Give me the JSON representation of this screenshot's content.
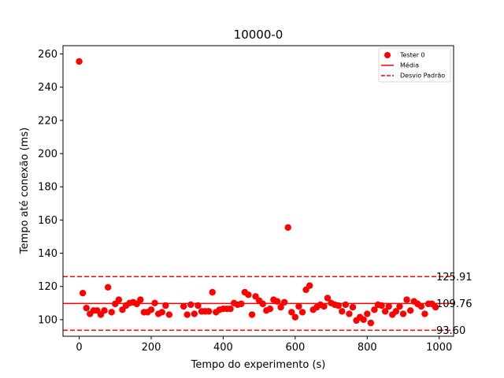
{
  "chart_data": {
    "type": "scatter",
    "title": "10000-0",
    "xlabel": "Tempo do experimento (s)",
    "ylabel": "Tempo até conexão (ms)",
    "xlim": [
      -45,
      1040
    ],
    "ylim": [
      90,
      265
    ],
    "xticks": [
      0,
      200,
      400,
      600,
      800,
      1000
    ],
    "yticks": [
      100,
      120,
      140,
      160,
      180,
      200,
      220,
      240,
      260
    ],
    "grid": false,
    "legend_position": "top-right",
    "legend": {
      "tester": "Tester 0",
      "mean": "Média",
      "std": "Desvio Padrão"
    },
    "colors": {
      "points": "#ff0000",
      "lines": "#ff0000"
    },
    "series": [
      {
        "name": "Tester 0",
        "x": [
          0,
          10,
          20,
          30,
          40,
          50,
          60,
          70,
          80,
          90,
          100,
          110,
          120,
          130,
          140,
          150,
          160,
          170,
          180,
          190,
          200,
          210,
          220,
          230,
          240,
          250,
          290,
          300,
          310,
          320,
          330,
          340,
          350,
          360,
          370,
          380,
          390,
          400,
          410,
          420,
          430,
          440,
          450,
          460,
          470,
          480,
          490,
          500,
          510,
          520,
          530,
          540,
          550,
          560,
          570,
          580,
          590,
          600,
          610,
          620,
          630,
          640,
          650,
          660,
          670,
          680,
          690,
          700,
          710,
          720,
          730,
          740,
          750,
          760,
          770,
          780,
          790,
          800,
          810,
          820,
          830,
          840,
          850,
          860,
          870,
          880,
          890,
          900,
          910,
          920,
          930,
          940,
          950,
          960,
          970,
          980,
          990
        ],
        "y": [
          255.5,
          116,
          107,
          103.5,
          105.5,
          105.5,
          103,
          105.5,
          119.5,
          104.5,
          109.5,
          112,
          106,
          108.5,
          110,
          110.5,
          109.5,
          112,
          104.5,
          104.5,
          106,
          110,
          103.5,
          104.5,
          108.5,
          103,
          108,
          103,
          109,
          103.5,
          108.5,
          105,
          105,
          105,
          116.5,
          104.5,
          106,
          106.5,
          106.5,
          106.5,
          110,
          109,
          109.5,
          116.5,
          115,
          103,
          114,
          111.5,
          109.5,
          105.5,
          106.5,
          112,
          111,
          107.5,
          110.5,
          155.5,
          104.5,
          101.5,
          108,
          104.5,
          118,
          120.5,
          106,
          107.5,
          109,
          108,
          113,
          110,
          109,
          108.5,
          105,
          109,
          103.5,
          107.5,
          99.5,
          101.5,
          100,
          103.5,
          98,
          106,
          109,
          108.5,
          105,
          108,
          103,
          105,
          108,
          103.5,
          112,
          105.5,
          111,
          109.5,
          108,
          103.5,
          109.5,
          109.5,
          107.5
        ]
      }
    ],
    "mean": 109.76,
    "std_upper": 125.91,
    "std_lower": 93.6,
    "mean_label": "109.76",
    "std_upper_label": "125.91",
    "std_lower_label": "93.60"
  }
}
